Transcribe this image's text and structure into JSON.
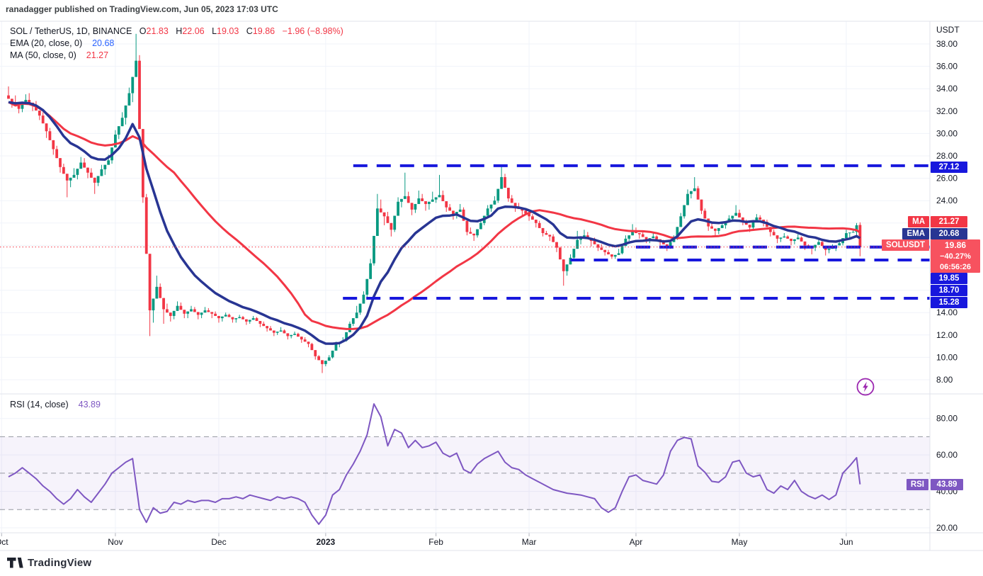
{
  "header": {
    "published_line": "ranadagger published on TradingView.com, Jun 05, 2023 17:03 UTC"
  },
  "legend": {
    "symbol": "SOL / TetherUS, 1D, BINANCE",
    "ohlc": [
      {
        "k": "O",
        "v": "21.83"
      },
      {
        "k": "H",
        "v": "22.06"
      },
      {
        "k": "L",
        "v": "19.03"
      },
      {
        "k": "C",
        "v": "19.86"
      }
    ],
    "change": "−1.96 (−8.98%)",
    "ema_label": "EMA (20, close, 0)",
    "ema_value": "20.68",
    "ma_label": "MA (50, close, 0)",
    "ma_value": "21.27",
    "rsi_label": "RSI (14, close)",
    "rsi_value": "43.89"
  },
  "price_axis": {
    "unit": "USDT",
    "ticks": [
      "38.00",
      "36.00",
      "34.00",
      "32.00",
      "30.00",
      "28.00",
      "26.00",
      "24.00",
      "22.00",
      "20.00",
      "18.00",
      "16.00",
      "14.00",
      "12.00",
      "10.00",
      "8.00"
    ]
  },
  "rsi_axis": {
    "ticks": [
      "80.00",
      "60.00",
      "40.00",
      "20.00"
    ]
  },
  "badges": {
    "level_top": "27.12",
    "ma": {
      "tag": "MA",
      "value": "21.27"
    },
    "ema": {
      "tag": "EMA",
      "value": "20.68"
    },
    "symbol": {
      "tag": "SOLUSDT",
      "price": "19.86",
      "change": "−40.27%",
      "countdown": "06:56:26"
    },
    "levels": [
      "19.85",
      "18.70",
      "15.28"
    ],
    "rsi": {
      "tag": "RSI",
      "value": "43.89"
    }
  },
  "time_axis": {
    "months": [
      {
        "label": "Oct",
        "day": -2,
        "bold": false
      },
      {
        "label": "Nov",
        "day": 31,
        "bold": false
      },
      {
        "label": "Dec",
        "day": 61,
        "bold": false
      },
      {
        "label": "2023",
        "day": 92,
        "bold": true
      },
      {
        "label": "Feb",
        "day": 124,
        "bold": false
      },
      {
        "label": "Mar",
        "day": 151,
        "bold": false
      },
      {
        "label": "Apr",
        "day": 182,
        "bold": false
      },
      {
        "label": "May",
        "day": 212,
        "bold": false
      },
      {
        "label": "Jun",
        "day": 243,
        "bold": false
      }
    ]
  },
  "logo": {
    "text": "TradingView"
  },
  "colors": {
    "up": "#089981",
    "down": "#f23645",
    "ema_line": "#283593",
    "ma_line": "#f23645",
    "level_blue": "#1818dd",
    "rsi_purple": "#7e57c2",
    "grid": "#f0f3fa",
    "separator": "#e0e3eb",
    "axis_text": "#131722",
    "band_dash": "#9598a1"
  },
  "chart_data": [
    {
      "type": "candlestick",
      "title": "SOL / TetherUS, 1D, BINANCE",
      "ylabel": "USDT",
      "ylim": [
        7.5,
        40
      ],
      "y_ticks": [
        38,
        36,
        34,
        32,
        30,
        28,
        26,
        24,
        22,
        20,
        18,
        16,
        14,
        12,
        10,
        8
      ],
      "start_day": 0,
      "day_step": 2,
      "final_day": 247,
      "last_close": 19.86,
      "overlays": [
        {
          "name": "EMA (20, close, 0)",
          "value_now": 20.68
        },
        {
          "name": "MA (50, close, 0)",
          "value_now": 21.27
        }
      ],
      "levels": [
        {
          "price": 27.12,
          "from_day": 100
        },
        {
          "price": 19.85,
          "from_day": 182
        },
        {
          "price": 18.7,
          "from_day": 163
        },
        {
          "price": 15.28,
          "from_day": 97
        }
      ],
      "candles": [
        [
          33.4,
          34.2,
          32.3,
          32.8
        ],
        [
          32.8,
          33.4,
          31.8,
          32.2
        ],
        [
          32.2,
          33.5,
          31.9,
          33.0
        ],
        [
          33.0,
          33.6,
          32.0,
          32.5
        ],
        [
          32.5,
          32.9,
          31.2,
          31.6
        ],
        [
          31.6,
          31.9,
          29.6,
          30.2
        ],
        [
          30.2,
          30.5,
          28.1,
          28.6
        ],
        [
          28.6,
          28.9,
          26.5,
          27.0
        ],
        [
          27.0,
          27.3,
          24.3,
          25.8
        ],
        [
          25.8,
          26.9,
          25.2,
          26.3
        ],
        [
          26.3,
          27.9,
          25.9,
          27.4
        ],
        [
          27.4,
          27.8,
          26.0,
          26.5
        ],
        [
          26.5,
          26.9,
          24.6,
          25.6
        ],
        [
          25.6,
          27.2,
          25.3,
          26.8
        ],
        [
          26.8,
          28.1,
          26.3,
          27.6
        ],
        [
          27.6,
          30.3,
          27.3,
          29.9
        ],
        [
          29.9,
          31.9,
          29.5,
          31.4
        ],
        [
          31.4,
          34.1,
          30.8,
          33.6
        ],
        [
          33.6,
          38.9,
          32.8,
          36.5
        ],
        [
          36.5,
          37.0,
          23.8,
          24.3
        ],
        [
          24.3,
          24.6,
          11.9,
          14.2
        ],
        [
          14.2,
          17.3,
          13.1,
          16.3
        ],
        [
          16.3,
          16.6,
          13.0,
          14.3
        ],
        [
          14.3,
          14.8,
          13.2,
          13.7
        ],
        [
          13.7,
          15.0,
          13.4,
          14.6
        ],
        [
          14.6,
          14.9,
          13.5,
          13.9
        ],
        [
          13.9,
          14.6,
          13.5,
          14.3
        ],
        [
          14.3,
          14.5,
          13.4,
          13.8
        ],
        [
          13.8,
          14.5,
          13.5,
          14.2
        ],
        [
          14.2,
          14.4,
          13.5,
          13.9
        ],
        [
          13.9,
          14.1,
          13.1,
          13.5
        ],
        [
          13.5,
          14.0,
          13.2,
          13.8
        ],
        [
          13.8,
          13.9,
          13.1,
          13.4
        ],
        [
          13.4,
          13.8,
          13.1,
          13.6
        ],
        [
          13.6,
          13.7,
          12.9,
          13.2
        ],
        [
          13.2,
          13.7,
          13.0,
          13.5
        ],
        [
          13.5,
          13.6,
          12.7,
          13.0
        ],
        [
          13.0,
          13.2,
          12.3,
          12.6
        ],
        [
          12.6,
          12.8,
          11.9,
          12.2
        ],
        [
          12.2,
          12.7,
          12.0,
          12.4
        ],
        [
          12.4,
          12.5,
          11.6,
          11.9
        ],
        [
          11.9,
          12.3,
          11.7,
          12.1
        ],
        [
          12.1,
          12.2,
          11.3,
          11.6
        ],
        [
          11.6,
          11.8,
          10.9,
          11.2
        ],
        [
          11.2,
          11.3,
          9.8,
          10.1
        ],
        [
          10.1,
          10.2,
          8.6,
          9.4
        ],
        [
          9.4,
          10.2,
          9.2,
          10.0
        ],
        [
          10.0,
          11.4,
          9.9,
          11.2
        ],
        [
          11.2,
          11.8,
          10.9,
          11.5
        ],
        [
          11.5,
          13.2,
          11.4,
          13.0
        ],
        [
          13.0,
          14.6,
          12.8,
          14.0
        ],
        [
          14.0,
          15.9,
          13.8,
          15.6
        ],
        [
          15.6,
          18.8,
          15.4,
          18.4
        ],
        [
          18.4,
          24.6,
          18.2,
          23.3
        ],
        [
          23.3,
          24.1,
          21.8,
          22.6
        ],
        [
          22.6,
          23.0,
          20.8,
          21.4
        ],
        [
          21.4,
          24.3,
          21.2,
          23.9
        ],
        [
          23.9,
          26.5,
          23.4,
          24.4
        ],
        [
          24.4,
          24.8,
          22.7,
          23.2
        ],
        [
          23.2,
          24.9,
          22.9,
          24.2
        ],
        [
          24.2,
          24.6,
          23.1,
          23.7
        ],
        [
          23.7,
          24.8,
          23.2,
          24.1
        ],
        [
          24.1,
          26.3,
          23.8,
          24.5
        ],
        [
          24.5,
          24.9,
          23.0,
          23.4
        ],
        [
          23.4,
          23.7,
          22.3,
          22.8
        ],
        [
          22.8,
          23.7,
          22.4,
          23.2
        ],
        [
          23.2,
          23.4,
          20.9,
          21.2
        ],
        [
          21.2,
          21.6,
          20.4,
          20.9
        ],
        [
          20.9,
          22.3,
          20.7,
          22.0
        ],
        [
          22.0,
          23.6,
          21.8,
          23.3
        ],
        [
          23.3,
          24.4,
          23.0,
          24.0
        ],
        [
          24.0,
          27.1,
          23.8,
          26.1
        ],
        [
          26.1,
          26.4,
          23.9,
          24.2
        ],
        [
          24.2,
          24.5,
          23.0,
          23.4
        ],
        [
          23.4,
          23.8,
          22.7,
          23.1
        ],
        [
          23.1,
          23.3,
          22.2,
          22.6
        ],
        [
          22.6,
          22.8,
          21.6,
          22.0
        ],
        [
          22.0,
          22.2,
          20.8,
          21.1
        ],
        [
          21.1,
          21.3,
          20.4,
          20.8
        ],
        [
          20.8,
          21.0,
          19.4,
          19.8
        ],
        [
          19.8,
          19.9,
          16.4,
          17.7
        ],
        [
          17.7,
          19.2,
          17.3,
          18.9
        ],
        [
          18.9,
          21.3,
          18.7,
          20.5
        ],
        [
          20.5,
          21.4,
          20.1,
          20.9
        ],
        [
          20.9,
          21.2,
          19.9,
          20.4
        ],
        [
          20.4,
          20.7,
          19.5,
          19.8
        ],
        [
          19.8,
          20.1,
          19.1,
          19.4
        ],
        [
          19.4,
          19.6,
          18.8,
          19.0
        ],
        [
          19.0,
          19.7,
          18.8,
          19.3
        ],
        [
          19.3,
          20.9,
          19.2,
          20.6
        ],
        [
          20.6,
          21.9,
          20.4,
          21.2
        ],
        [
          21.2,
          21.6,
          20.6,
          21.0
        ],
        [
          21.0,
          21.2,
          20.2,
          20.5
        ],
        [
          20.5,
          21.1,
          20.2,
          20.8
        ],
        [
          20.8,
          20.9,
          20.0,
          20.3
        ],
        [
          20.3,
          20.5,
          19.5,
          19.9
        ],
        [
          19.9,
          20.9,
          19.7,
          20.7
        ],
        [
          20.7,
          22.9,
          20.5,
          22.6
        ],
        [
          22.6,
          25.0,
          22.4,
          24.6
        ],
        [
          24.6,
          26.1,
          24.2,
          25.1
        ],
        [
          25.1,
          25.3,
          22.8,
          23.1
        ],
        [
          23.1,
          23.3,
          21.3,
          21.7
        ],
        [
          21.7,
          22.0,
          20.9,
          21.3
        ],
        [
          21.3,
          22.1,
          21.0,
          21.8
        ],
        [
          21.8,
          22.7,
          21.5,
          22.4
        ],
        [
          22.4,
          23.6,
          22.1,
          22.9
        ],
        [
          22.9,
          23.2,
          21.8,
          22.1
        ],
        [
          22.1,
          22.3,
          21.2,
          21.6
        ],
        [
          21.6,
          22.8,
          21.4,
          22.5
        ],
        [
          22.5,
          22.7,
          21.7,
          22.1
        ],
        [
          22.1,
          22.3,
          20.8,
          21.2
        ],
        [
          21.2,
          21.4,
          20.2,
          20.6
        ],
        [
          20.6,
          21.1,
          20.3,
          20.8
        ],
        [
          20.8,
          20.9,
          20.0,
          20.4
        ],
        [
          20.4,
          21.0,
          20.1,
          20.7
        ],
        [
          20.7,
          20.8,
          19.6,
          20.0
        ],
        [
          20.0,
          20.1,
          19.2,
          19.8
        ],
        [
          19.8,
          20.6,
          19.5,
          20.3
        ],
        [
          20.3,
          20.4,
          19.1,
          19.6
        ],
        [
          19.6,
          20.1,
          19.3,
          19.8
        ],
        [
          19.8,
          20.5,
          19.5,
          20.2
        ],
        [
          20.2,
          21.4,
          20.0,
          21.1
        ],
        [
          21.1,
          21.5,
          20.7,
          21.2
        ],
        [
          21.2,
          22.0,
          20.9,
          21.8
        ],
        [
          21.83,
          22.06,
          19.03,
          19.86
        ]
      ]
    },
    {
      "type": "line",
      "name": "RSI (14, close)",
      "ylim": [
        15,
        92
      ],
      "y_ticks": [
        80,
        60,
        40,
        20
      ],
      "bands": {
        "upper": 70,
        "middle": 50,
        "lower": 30
      },
      "start_day": 0,
      "day_step": 2,
      "final_day": 247,
      "values": [
        48,
        50,
        53,
        50,
        47,
        43,
        40,
        36,
        33,
        36,
        41,
        37,
        34,
        39,
        44,
        50,
        53,
        56,
        58,
        30,
        23,
        31,
        28,
        29,
        34,
        33,
        35,
        34,
        35,
        35,
        34,
        36,
        36,
        37,
        36,
        38,
        37,
        36,
        35,
        37,
        36,
        37,
        36,
        34,
        27,
        22,
        27,
        38,
        41,
        49,
        55,
        62,
        71,
        88,
        81,
        65,
        74,
        72,
        64,
        68,
        64,
        65,
        67,
        61,
        59,
        61,
        52,
        50,
        55,
        58,
        60,
        62,
        56,
        53,
        52,
        49,
        47,
        45,
        43,
        41,
        40,
        39,
        38.5,
        38,
        37,
        36,
        31,
        28.5,
        31,
        40,
        48,
        49,
        46,
        45,
        44,
        49,
        62,
        68,
        69.6,
        68.8,
        54,
        50.5,
        45.5,
        45,
        48,
        56,
        57,
        50,
        48,
        49,
        41,
        39,
        43,
        41,
        46,
        40,
        37.5,
        36,
        38,
        35.5,
        38,
        50,
        54,
        58.5,
        43.89
      ]
    }
  ]
}
